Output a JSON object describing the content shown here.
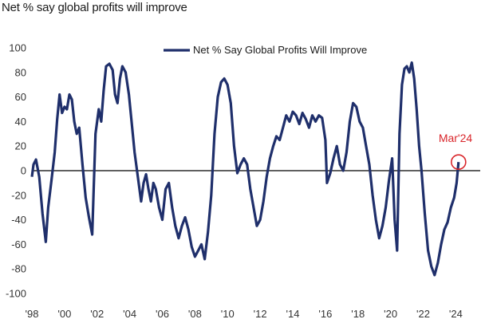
{
  "title": "Net % say global profits will improve",
  "chart_data": {
    "type": "line",
    "series": [
      {
        "name": "Net % Say Global Profits Will Improve",
        "color": "#1f2f6b",
        "points": [
          [
            1998.0,
            -5
          ],
          [
            1998.1,
            5
          ],
          [
            1998.25,
            9
          ],
          [
            1998.45,
            -5
          ],
          [
            1998.65,
            -35
          ],
          [
            1998.85,
            -58
          ],
          [
            1999.0,
            -30
          ],
          [
            1999.2,
            -8
          ],
          [
            1999.4,
            15
          ],
          [
            1999.55,
            42
          ],
          [
            1999.7,
            62
          ],
          [
            1999.85,
            47
          ],
          [
            2000.0,
            52
          ],
          [
            2000.15,
            50
          ],
          [
            2000.3,
            62
          ],
          [
            2000.45,
            58
          ],
          [
            2000.6,
            40
          ],
          [
            2000.75,
            30
          ],
          [
            2000.9,
            35
          ],
          [
            2001.1,
            5
          ],
          [
            2001.3,
            -22
          ],
          [
            2001.5,
            -38
          ],
          [
            2001.7,
            -52
          ],
          [
            2001.9,
            30
          ],
          [
            2002.1,
            50
          ],
          [
            2002.25,
            40
          ],
          [
            2002.4,
            65
          ],
          [
            2002.55,
            85
          ],
          [
            2002.75,
            87
          ],
          [
            2002.95,
            82
          ],
          [
            2003.1,
            62
          ],
          [
            2003.25,
            55
          ],
          [
            2003.4,
            75
          ],
          [
            2003.55,
            85
          ],
          [
            2003.75,
            80
          ],
          [
            2003.95,
            62
          ],
          [
            2004.15,
            35
          ],
          [
            2004.3,
            15
          ],
          [
            2004.5,
            -5
          ],
          [
            2004.7,
            -25
          ],
          [
            2004.85,
            -10
          ],
          [
            2005.0,
            -3
          ],
          [
            2005.15,
            -15
          ],
          [
            2005.3,
            -25
          ],
          [
            2005.45,
            -10
          ],
          [
            2005.6,
            -15
          ],
          [
            2005.8,
            -30
          ],
          [
            2006.0,
            -40
          ],
          [
            2006.2,
            -15
          ],
          [
            2006.4,
            -10
          ],
          [
            2006.6,
            -30
          ],
          [
            2006.8,
            -45
          ],
          [
            2007.0,
            -55
          ],
          [
            2007.2,
            -45
          ],
          [
            2007.4,
            -38
          ],
          [
            2007.6,
            -48
          ],
          [
            2007.8,
            -62
          ],
          [
            2008.0,
            -70
          ],
          [
            2008.2,
            -65
          ],
          [
            2008.4,
            -60
          ],
          [
            2008.6,
            -72
          ],
          [
            2008.8,
            -50
          ],
          [
            2009.0,
            -20
          ],
          [
            2009.2,
            30
          ],
          [
            2009.4,
            60
          ],
          [
            2009.6,
            72
          ],
          [
            2009.8,
            75
          ],
          [
            2010.0,
            70
          ],
          [
            2010.2,
            55
          ],
          [
            2010.4,
            20
          ],
          [
            2010.6,
            -2
          ],
          [
            2010.8,
            5
          ],
          [
            2011.0,
            10
          ],
          [
            2011.2,
            5
          ],
          [
            2011.4,
            -15
          ],
          [
            2011.6,
            -30
          ],
          [
            2011.8,
            -45
          ],
          [
            2012.0,
            -40
          ],
          [
            2012.2,
            -25
          ],
          [
            2012.4,
            -5
          ],
          [
            2012.6,
            10
          ],
          [
            2012.8,
            20
          ],
          [
            2013.0,
            28
          ],
          [
            2013.2,
            25
          ],
          [
            2013.4,
            35
          ],
          [
            2013.6,
            45
          ],
          [
            2013.8,
            40
          ],
          [
            2014.0,
            48
          ],
          [
            2014.2,
            45
          ],
          [
            2014.4,
            38
          ],
          [
            2014.6,
            47
          ],
          [
            2014.8,
            42
          ],
          [
            2015.0,
            35
          ],
          [
            2015.2,
            45
          ],
          [
            2015.4,
            40
          ],
          [
            2015.6,
            45
          ],
          [
            2015.8,
            43
          ],
          [
            2016.0,
            25
          ],
          [
            2016.1,
            -10
          ],
          [
            2016.3,
            -2
          ],
          [
            2016.5,
            10
          ],
          [
            2016.7,
            20
          ],
          [
            2016.9,
            5
          ],
          [
            2017.1,
            0
          ],
          [
            2017.3,
            15
          ],
          [
            2017.5,
            40
          ],
          [
            2017.7,
            55
          ],
          [
            2017.9,
            52
          ],
          [
            2018.1,
            40
          ],
          [
            2018.3,
            35
          ],
          [
            2018.5,
            20
          ],
          [
            2018.7,
            5
          ],
          [
            2018.9,
            -20
          ],
          [
            2019.1,
            -40
          ],
          [
            2019.3,
            -55
          ],
          [
            2019.5,
            -45
          ],
          [
            2019.7,
            -30
          ],
          [
            2019.9,
            -8
          ],
          [
            2020.1,
            10
          ],
          [
            2020.25,
            -40
          ],
          [
            2020.4,
            -65
          ],
          [
            2020.55,
            30
          ],
          [
            2020.7,
            70
          ],
          [
            2020.85,
            83
          ],
          [
            2021.0,
            85
          ],
          [
            2021.15,
            80
          ],
          [
            2021.3,
            88
          ],
          [
            2021.45,
            75
          ],
          [
            2021.6,
            50
          ],
          [
            2021.75,
            20
          ],
          [
            2021.9,
            0
          ],
          [
            2022.1,
            -35
          ],
          [
            2022.3,
            -65
          ],
          [
            2022.5,
            -78
          ],
          [
            2022.7,
            -85
          ],
          [
            2022.9,
            -75
          ],
          [
            2023.1,
            -60
          ],
          [
            2023.3,
            -48
          ],
          [
            2023.5,
            -42
          ],
          [
            2023.7,
            -30
          ],
          [
            2023.9,
            -22
          ],
          [
            2024.05,
            -10
          ],
          [
            2024.17,
            7
          ]
        ]
      }
    ],
    "x_ticks": [
      {
        "value": 1998,
        "label": "'98"
      },
      {
        "value": 2000,
        "label": "'00"
      },
      {
        "value": 2002,
        "label": "'02"
      },
      {
        "value": 2004,
        "label": "'04"
      },
      {
        "value": 2006,
        "label": "'06"
      },
      {
        "value": 2008,
        "label": "'08"
      },
      {
        "value": 2010,
        "label": "'10"
      },
      {
        "value": 2012,
        "label": "'12"
      },
      {
        "value": 2014,
        "label": "'14"
      },
      {
        "value": 2016,
        "label": "'16"
      },
      {
        "value": 2018,
        "label": "'18"
      },
      {
        "value": 2020,
        "label": "'20"
      },
      {
        "value": 2022,
        "label": "'22"
      },
      {
        "value": 2024,
        "label": "'24"
      }
    ],
    "y_ticks": [
      100,
      80,
      60,
      40,
      20,
      0,
      -20,
      -40,
      -60,
      -80,
      -100
    ],
    "xlim": [
      1998,
      2025.5
    ],
    "ylim": [
      -100,
      100
    ],
    "zero_line": true,
    "grid": false,
    "legend_position": "top-center",
    "annotation": {
      "label": "Mar'24",
      "x": 2024.17,
      "y": 7,
      "color": "#d9262b"
    }
  }
}
